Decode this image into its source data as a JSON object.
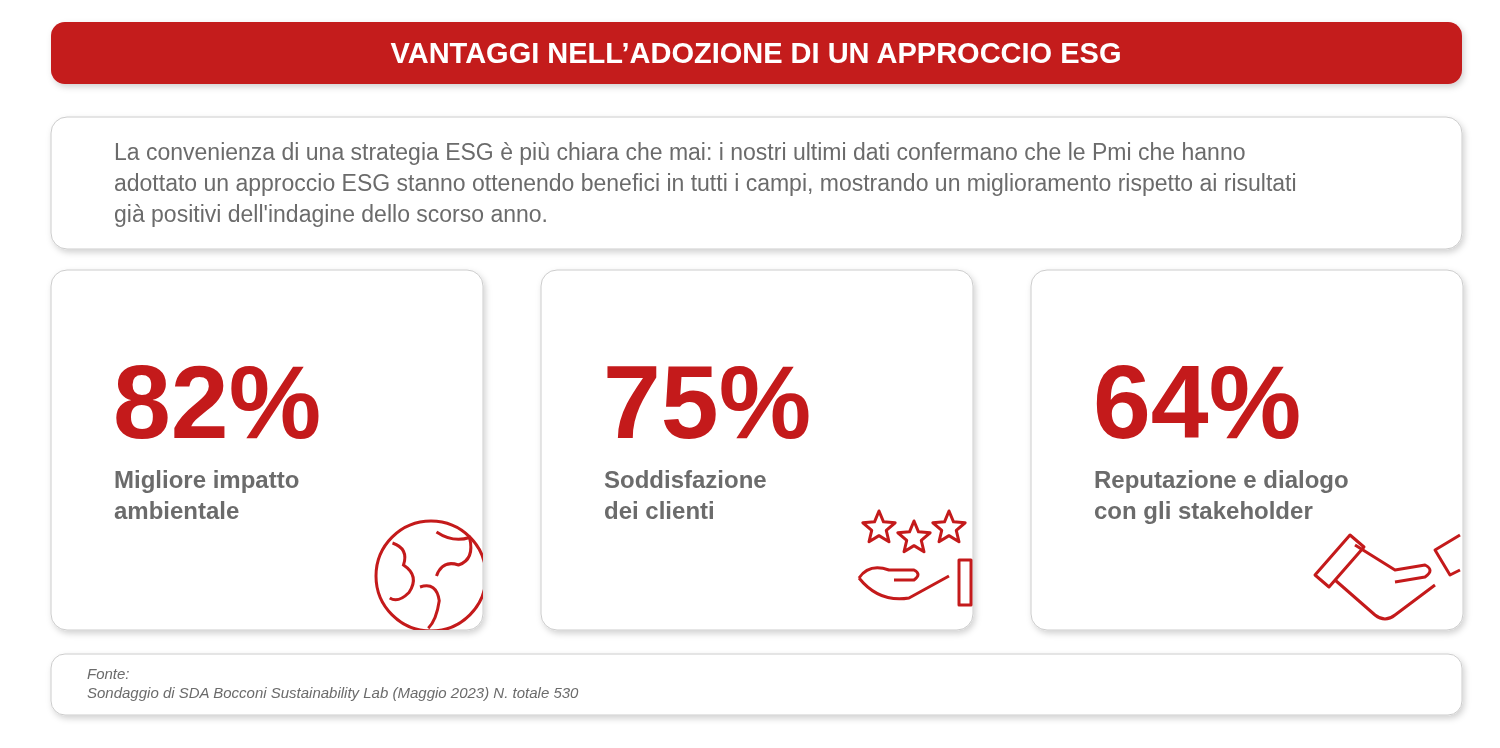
{
  "chart_data": {
    "type": "other",
    "title": "VANTAGGI NELL’ADOZIONE DI UN APPROCCIO ESG",
    "subtitle": "La convenienza di una strategia ESG è più chiara che mai: i nostri ultimi dati confermano che le Pmi che hanno adottato un approccio ESG stanno ottenendo benefici in tutti i campi, mostrando un miglioramento rispetto ai risultati già positivi dell'indagine dello scorso anno.",
    "categories": [
      "Migliore impatto\nambientale",
      "Soddisfazione\ndei clienti",
      "Reputazione e dialogo\ncon gli stakeholder"
    ],
    "values": [
      82,
      75,
      64
    ],
    "value_labels": [
      "82%",
      "75%",
      "64%"
    ],
    "annotations": [
      "Fonte:",
      "Sondaggio di SDA Bocconi Sustainability Lab (Maggio 2023) N. totale 530"
    ]
  }
}
